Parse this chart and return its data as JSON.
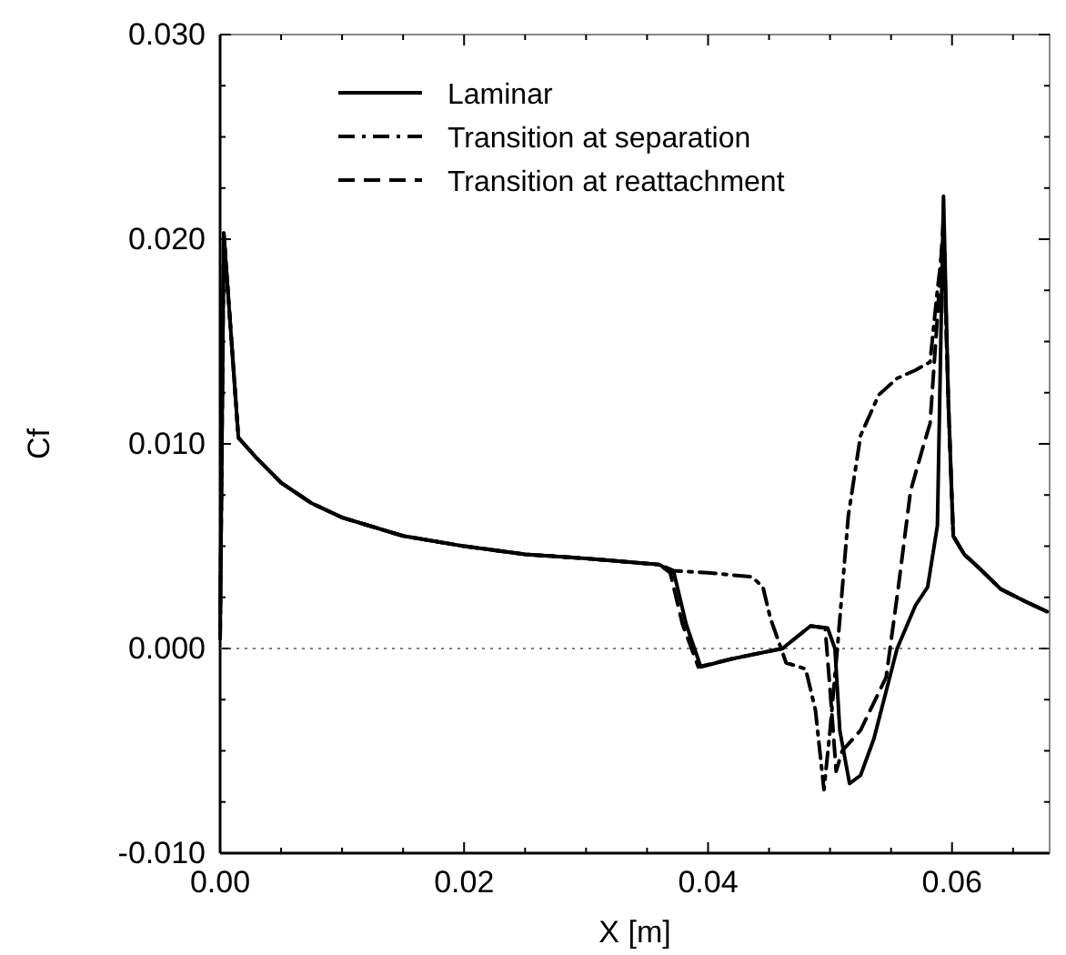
{
  "chart_data": {
    "type": "line",
    "xlabel": "X [m]",
    "ylabel": "Cf",
    "xlim": [
      0,
      0.068
    ],
    "xticks": [
      {
        "value": 0,
        "label": "0.00"
      },
      {
        "value": 0.005,
        "label": null
      },
      0.02,
      {
        "value": 0.01,
        "label": null
      },
      {
        "value": 0.015,
        "label": null
      },
      {
        "value": 0.025,
        "label": null
      },
      {
        "value": 0.03,
        "label": null
      },
      {
        "value": 0.035,
        "label": null
      },
      0.04,
      {
        "value": 0.045,
        "label": null
      },
      {
        "value": 0.05,
        "label": null
      },
      {
        "value": 0.055,
        "label": null
      },
      0.06,
      {
        "value": 0.065,
        "label": null
      }
    ],
    "ylim": [
      -0.01,
      0.03
    ],
    "yticks": [
      {
        "value": -0.01,
        "label": "-0.010"
      },
      {
        "value": -0.0075,
        "label": null
      },
      {
        "value": -0.005,
        "label": null
      },
      {
        "value": -0.0025,
        "label": null
      },
      {
        "value": 0,
        "label": "0.000"
      },
      {
        "value": 0.0025,
        "label": null
      },
      {
        "value": 0.005,
        "label": null
      },
      {
        "value": 0.0075,
        "label": null
      },
      {
        "value": 0.01,
        "label": "0.010"
      },
      {
        "value": 0.0125,
        "label": null
      },
      {
        "value": 0.015,
        "label": null
      },
      {
        "value": 0.0175,
        "label": null
      },
      {
        "value": 0.02,
        "label": "0.020"
      },
      {
        "value": 0.0225,
        "label": null
      },
      {
        "value": 0.025,
        "label": null
      },
      {
        "value": 0.0275,
        "label": null
      },
      {
        "value": 0.03,
        "label": "0.030"
      }
    ],
    "legend": "top left",
    "grid": false,
    "marker": "none",
    "ref_lines": [
      {
        "axis": "y",
        "value": 0,
        "color": "#555555",
        "line_style": "dotted"
      }
    ],
    "series": [
      {
        "name": "Laminar",
        "color": "#000000",
        "line_style": "solid",
        "x": [
          0,
          0.0003,
          0.0015,
          0.003,
          0.005,
          0.0075,
          0.01,
          0.015,
          0.02,
          0.025,
          0.03,
          0.036,
          0.0372,
          0.0382,
          0.0394,
          0.042,
          0.0461,
          0.0484,
          0.0498,
          0.0504,
          0.0508,
          0.0516,
          0.0525,
          0.0536,
          0.0555,
          0.057,
          0.058,
          0.0588,
          0.0593,
          0.0597,
          0.0601,
          0.061,
          0.0621,
          0.064,
          0.066,
          0.0678
        ],
        "values": [
          0.0005,
          0.0203,
          0.0103,
          0.0093,
          0.0081,
          0.0071,
          0.0064,
          0.0055,
          0.005,
          0.0046,
          0.0044,
          0.0041,
          0.0037,
          0.0012,
          -0.0009,
          -0.0005,
          0.0,
          0.0011,
          0.001,
          0.0,
          -0.004,
          -0.0066,
          -0.0062,
          -0.0044,
          0.0,
          0.0021,
          0.003,
          0.006,
          0.0221,
          0.012,
          0.0055,
          0.0046,
          0.004,
          0.0029,
          0.0023,
          0.0018
        ]
      },
      {
        "name": "Transition at separation",
        "color": "#000000",
        "line_style": "dashdot",
        "x": [
          0,
          0.0003,
          0.0015,
          0.003,
          0.005,
          0.0075,
          0.01,
          0.015,
          0.02,
          0.025,
          0.03,
          0.036,
          0.0372,
          0.04,
          0.0436,
          0.0445,
          0.0451,
          0.0464,
          0.048,
          0.0488,
          0.0495,
          0.05,
          0.0506,
          0.0515,
          0.0525,
          0.054,
          0.0555,
          0.057,
          0.0582,
          0.0588,
          0.0593,
          0.0597,
          0.0601,
          0.061,
          0.0621,
          0.064,
          0.066,
          0.0678
        ],
        "values": [
          0.0005,
          0.0203,
          0.0103,
          0.0093,
          0.0081,
          0.0071,
          0.0064,
          0.0055,
          0.005,
          0.0046,
          0.0044,
          0.0041,
          0.0038,
          0.0037,
          0.0035,
          0.003,
          0.0015,
          -0.0007,
          -0.001,
          -0.003,
          -0.0069,
          -0.004,
          0.0,
          0.0065,
          0.0104,
          0.0124,
          0.0132,
          0.0136,
          0.014,
          0.0175,
          0.02,
          0.012,
          0.0055,
          0.0046,
          0.004,
          0.0029,
          0.0023,
          0.0018
        ]
      },
      {
        "name": "Transition at reattachment",
        "color": "#000000",
        "line_style": "dashed",
        "x": [
          0,
          0.0003,
          0.0015,
          0.003,
          0.005,
          0.0075,
          0.01,
          0.015,
          0.02,
          0.025,
          0.03,
          0.036,
          0.0369,
          0.0379,
          0.0392,
          0.042,
          0.0461,
          0.0484,
          0.0496,
          0.05,
          0.0505,
          0.051,
          0.0525,
          0.0546,
          0.0556,
          0.0566,
          0.0576,
          0.0582,
          0.0588,
          0.0593,
          0.0597,
          0.0601,
          0.061,
          0.0621,
          0.064,
          0.066,
          0.0678
        ],
        "values": [
          0.0005,
          0.0203,
          0.0103,
          0.0093,
          0.0081,
          0.0071,
          0.0064,
          0.0055,
          0.005,
          0.0046,
          0.0044,
          0.0041,
          0.0037,
          0.0012,
          -0.0009,
          -0.0005,
          0.0,
          0.0011,
          0.001,
          -0.002,
          -0.006,
          -0.005,
          -0.004,
          -0.0014,
          0.003,
          0.0077,
          0.0098,
          0.011,
          0.0162,
          0.021,
          0.012,
          0.0055,
          0.0046,
          0.004,
          0.0029,
          0.0023,
          0.0018
        ]
      }
    ]
  }
}
